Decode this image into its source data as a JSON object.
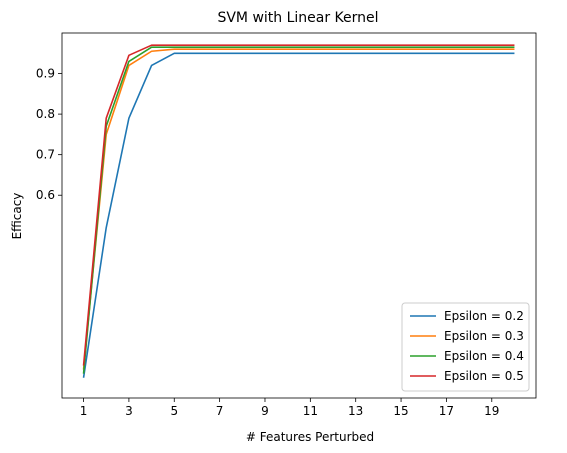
{
  "chart_data": {
    "type": "line",
    "title": "SVM with Linear Kernel",
    "xlabel": "# Features Perturbed",
    "ylabel": "Efficacy",
    "xlim": [
      0.05,
      20.95
    ],
    "ylim": [
      0.1,
      1.0
    ],
    "xticks": [
      1,
      3,
      5,
      7,
      9,
      11,
      13,
      15,
      17,
      19
    ],
    "yticks": [
      0.6,
      0.7,
      0.8,
      0.9
    ],
    "grid": false,
    "legend_position": "lower-right",
    "x": [
      1,
      2,
      3,
      4,
      5,
      6,
      7,
      8,
      9,
      10,
      11,
      12,
      13,
      14,
      15,
      16,
      17,
      19,
      20
    ],
    "series": [
      {
        "name": "Epsilon = 0.2",
        "color": "#1f77b4",
        "values": [
          0.15,
          0.52,
          0.79,
          0.92,
          0.95,
          0.95,
          0.95,
          0.95,
          0.95,
          0.95,
          0.95,
          0.95,
          0.95,
          0.95,
          0.95,
          0.95,
          0.95,
          0.95,
          0.95
        ]
      },
      {
        "name": "Epsilon = 0.3",
        "color": "#ff7f0e",
        "values": [
          0.17,
          0.75,
          0.92,
          0.955,
          0.96,
          0.96,
          0.96,
          0.96,
          0.96,
          0.96,
          0.96,
          0.96,
          0.96,
          0.96,
          0.96,
          0.96,
          0.96,
          0.96,
          0.96
        ]
      },
      {
        "name": "Epsilon = 0.4",
        "color": "#2ca02c",
        "values": [
          0.16,
          0.77,
          0.93,
          0.965,
          0.965,
          0.965,
          0.965,
          0.965,
          0.965,
          0.965,
          0.965,
          0.965,
          0.965,
          0.965,
          0.965,
          0.965,
          0.965,
          0.965,
          0.965
        ]
      },
      {
        "name": "Epsilon = 0.5",
        "color": "#d62728",
        "values": [
          0.18,
          0.79,
          0.945,
          0.97,
          0.97,
          0.97,
          0.97,
          0.97,
          0.97,
          0.97,
          0.97,
          0.97,
          0.97,
          0.97,
          0.97,
          0.97,
          0.97,
          0.97,
          0.97
        ]
      }
    ]
  }
}
